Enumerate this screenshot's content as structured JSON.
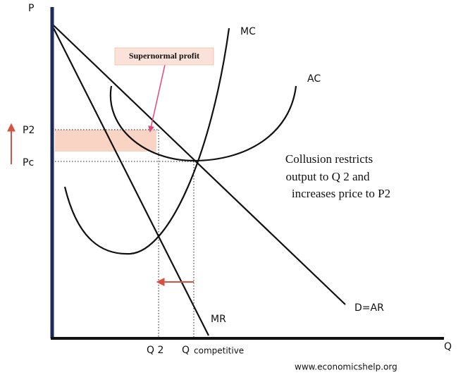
{
  "axes": {
    "y_label": "P",
    "x_label": "Q"
  },
  "price_labels": {
    "p2": "P2",
    "pc": "Pc"
  },
  "quantity_labels": {
    "q2": "Q 2",
    "qc_symbol": "Q",
    "qc_text": "competitive"
  },
  "curves": {
    "mc": "MC",
    "ac": "AC",
    "demand": "D=AR",
    "mr": "MR"
  },
  "callout": "Supernormal profit",
  "annotation": [
    "Collusion restricts",
    "output to Q 2 and",
    "increases price to P2"
  ],
  "footer": "www.economicshelp.org"
}
